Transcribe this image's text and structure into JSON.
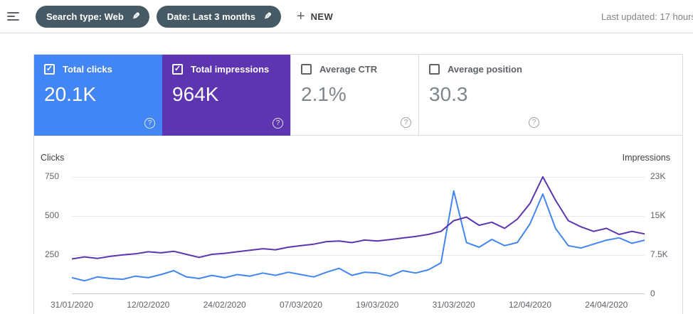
{
  "header": {
    "chips": [
      {
        "label": "Search type: Web"
      },
      {
        "label": "Date: Last 3 months"
      }
    ],
    "new_button_label": "NEW",
    "last_updated": "Last updated: 17 hours"
  },
  "icons": {
    "check": "✓",
    "pencil": "✎",
    "plus": "+",
    "help": "?"
  },
  "metrics": [
    {
      "label": "Total clicks",
      "value": "20.1K",
      "checked": true,
      "color": "#4285f4"
    },
    {
      "label": "Total impressions",
      "value": "964K",
      "checked": true,
      "color": "#5e35b1"
    },
    {
      "label": "Average CTR",
      "value": "2.1%",
      "checked": false
    },
    {
      "label": "Average position",
      "value": "30.3",
      "checked": false
    }
  ],
  "chart_data": {
    "type": "line",
    "left_axis_label": "Clicks",
    "right_axis_label": "Impressions",
    "left_axis_ticks": [
      250,
      500,
      750
    ],
    "left_axis_max": 795,
    "right_axis_max_k": 23,
    "right_axis_ticks": [
      {
        "label": "23K",
        "at_clicks": 750
      },
      {
        "label": "15K",
        "at_clicks": 500
      },
      {
        "label": "7.5K",
        "at_clicks": 250
      },
      {
        "label": "0",
        "at_clicks": 0
      }
    ],
    "x_start": "31/01/2020",
    "x_end": "30/04/2020",
    "x_step_days": 2,
    "x_tick_labels": [
      "31/01/2020",
      "12/02/2020",
      "24/02/2020",
      "07/03/2020",
      "19/03/2020",
      "31/03/2020",
      "12/04/2020",
      "24/04/2020"
    ],
    "x_tick_indices": [
      0,
      6,
      12,
      18,
      24,
      30,
      36,
      42
    ],
    "series": [
      {
        "name": "Clicks",
        "axis": "left",
        "color": "#4285f4",
        "values": [
          105,
          85,
          110,
          100,
          95,
          115,
          105,
          125,
          150,
          110,
          100,
          120,
          105,
          125,
          115,
          135,
          120,
          140,
          125,
          110,
          140,
          165,
          120,
          140,
          135,
          115,
          150,
          135,
          155,
          200,
          660,
          330,
          300,
          350,
          310,
          330,
          450,
          640,
          420,
          310,
          295,
          320,
          345,
          360,
          325,
          345
        ]
      },
      {
        "name": "Impressions",
        "axis": "right",
        "unit": "thousands",
        "color": "#5e35b1",
        "values": [
          6.9,
          7.3,
          7.0,
          7.4,
          7.7,
          7.9,
          8.3,
          8.1,
          8.4,
          7.8,
          7.2,
          7.8,
          8.0,
          8.3,
          8.6,
          8.9,
          8.7,
          9.2,
          9.5,
          9.8,
          10.3,
          10.4,
          10.1,
          10.6,
          10.4,
          10.7,
          11.0,
          11.3,
          11.7,
          12.3,
          14.4,
          15.1,
          13.5,
          14.1,
          12.9,
          14.7,
          17.8,
          23.0,
          18.4,
          14.4,
          13.2,
          12.3,
          12.9,
          11.7,
          12.3,
          11.8
        ]
      }
    ]
  }
}
